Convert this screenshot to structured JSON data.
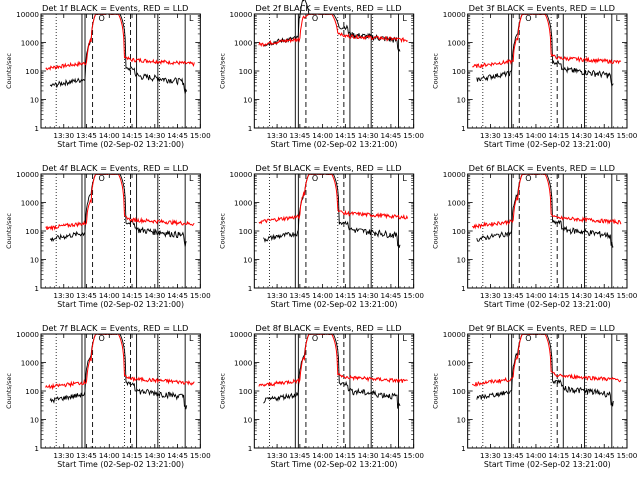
{
  "layout": {
    "rows": 3,
    "cols": 3
  },
  "common": {
    "ylabel": "Counts/sec",
    "xlabel": "Start Time (02-Sep-02 13:21:00)",
    "yscale": "log",
    "ylim": [
      1,
      10000
    ],
    "yticks": [
      1,
      10,
      100,
      1000,
      10000
    ],
    "xlim_minutes": [
      -6,
      99
    ],
    "xticks": [
      {
        "label": "13:30",
        "min": 9
      },
      {
        "label": "13:45",
        "min": 24
      },
      {
        "label": "14:00",
        "min": 39
      },
      {
        "label": "14:15",
        "min": 54
      },
      {
        "label": "14:30",
        "min": 69
      },
      {
        "label": "14:45",
        "min": 84
      },
      {
        "label": "15:00",
        "min": 99
      }
    ],
    "series_colors": {
      "events": "#000000",
      "lld": "#ff0000"
    },
    "markers": {
      "dotted_minutes": [
        4,
        49,
        72
      ],
      "solid_minutes": [
        21,
        23,
        57,
        71,
        89
      ],
      "dashed_minutes": [
        28,
        53
      ],
      "top_symbols": [
        {
          "min": 34,
          "symbol": "O"
        },
        {
          "min": 93,
          "symbol": "L"
        }
      ]
    }
  },
  "chart_data": [
    {
      "type": "line",
      "title": "Det 1f BLACK = Events, RED = LLD",
      "lld_base": 130,
      "events_base": 30,
      "peak": 10000
    },
    {
      "type": "line",
      "title": "Det 2f BLACK = Events, RED = LLD",
      "lld_base": 900,
      "events_base": 850,
      "peak": 10000
    },
    {
      "type": "line",
      "title": "Det 3f BLACK = Events, RED = LLD",
      "lld_base": 150,
      "events_base": 50,
      "peak": 10000
    },
    {
      "type": "line",
      "title": "Det 4f BLACK = Events, RED = LLD",
      "lld_base": 130,
      "events_base": 50,
      "peak": 10000
    },
    {
      "type": "line",
      "title": "Det 5f BLACK = Events, RED = LLD",
      "lld_base": 220,
      "events_base": 50,
      "peak": 10000
    },
    {
      "type": "line",
      "title": "Det 6f BLACK = Events, RED = LLD",
      "lld_base": 150,
      "events_base": 50,
      "peak": 10000
    },
    {
      "type": "line",
      "title": "Det 7f BLACK = Events, RED = LLD",
      "lld_base": 140,
      "events_base": 45,
      "peak": 10000
    },
    {
      "type": "line",
      "title": "Det 8f BLACK = Events, RED = LLD",
      "lld_base": 160,
      "events_base": 45,
      "peak": 10000
    },
    {
      "type": "line",
      "title": "Det 9f BLACK = Events, RED = LLD",
      "lld_base": 180,
      "events_base": 55,
      "peak": 10000
    }
  ]
}
